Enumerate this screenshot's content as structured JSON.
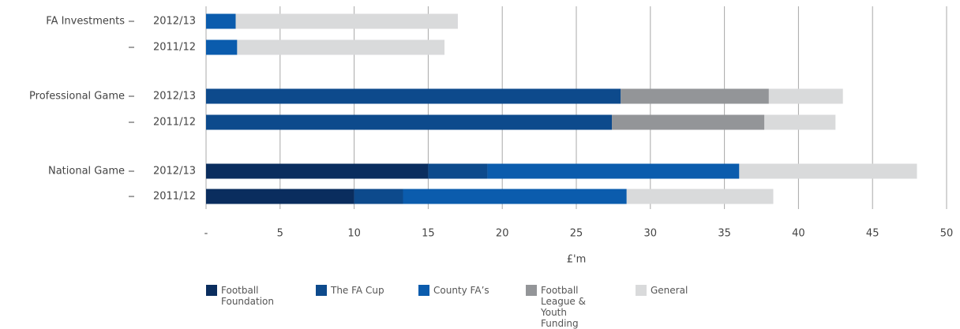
{
  "chart_data": {
    "type": "stacked-barh",
    "groups": [
      "FA Investments",
      "Professional Game",
      "National Game"
    ],
    "categories": [
      "2012/13",
      "2011/12",
      "2012/13",
      "2011/12",
      "2012/13",
      "2011/12"
    ],
    "category_groups": [
      0,
      0,
      1,
      1,
      2,
      2
    ],
    "xlabel": "£'m",
    "series": [
      {
        "name": "Football Foundation",
        "color": "#0a2d5e",
        "values": [
          null,
          null,
          null,
          null,
          15.0,
          10.0
        ]
      },
      {
        "name": "The FA Cup",
        "color": "#0d4a8c",
        "values": [
          null,
          null,
          28.0,
          27.4,
          4.0,
          3.3
        ]
      },
      {
        "name": "County FA’s",
        "color": "#0b5cad",
        "values": [
          2.0,
          2.1,
          null,
          null,
          17.0,
          15.1
        ]
      },
      {
        "name": "Football League & Youth Funding",
        "color": "#939598",
        "values": [
          null,
          null,
          10.0,
          10.3,
          null,
          null
        ]
      },
      {
        "name": "General",
        "color": "#d9dadb",
        "values": [
          15.0,
          14.0,
          5.0,
          4.8,
          12.0,
          9.9
        ]
      }
    ],
    "xlim": [
      0,
      50
    ],
    "xticks": [
      {
        "value": 0,
        "label": "-"
      },
      5,
      10,
      15,
      20,
      25,
      30,
      35,
      40,
      45,
      50
    ],
    "grid": true
  }
}
